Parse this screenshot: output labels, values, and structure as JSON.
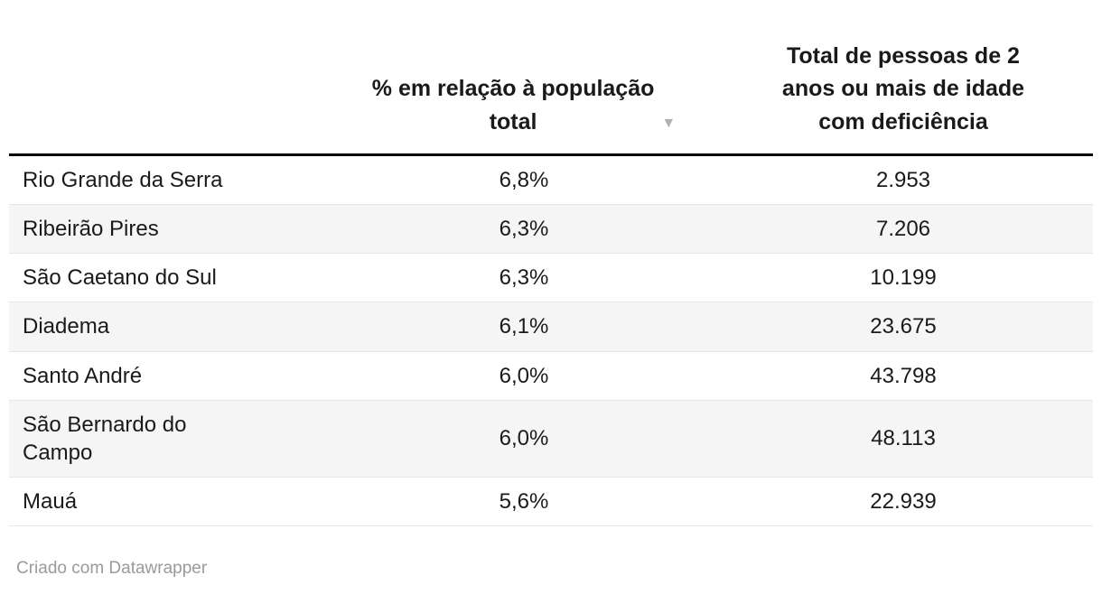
{
  "colors": {
    "text": "#1a1a1a",
    "alt_row_background": "#f5f5f5",
    "row_separator": "#e6e6e6",
    "header_rule": "#000000",
    "sort_icon": "#b0b0b0",
    "footer_text": "#9a9a9a"
  },
  "header": {
    "city_label": "",
    "pct_label_lines": [
      "% em relação à população",
      "total"
    ],
    "total_label_lines": [
      "Total de pessoas de 2",
      "anos ou mais de idade",
      "com deficiência"
    ],
    "sort_icon": "▼"
  },
  "footer": {
    "credit": "Criado com Datawrapper"
  },
  "chart_data": {
    "type": "table",
    "columns": [
      "",
      "% em relação à população total",
      "Total de pessoas de 2 anos ou mais de idade com deficiência"
    ],
    "sorted_by": {
      "column": "% em relação à população total",
      "direction": "descending"
    },
    "rows": [
      {
        "city": "Rio Grande da Serra",
        "pct": "6,8%",
        "total": "2.953"
      },
      {
        "city": "Ribeirão Pires",
        "pct": "6,3%",
        "total": "7.206"
      },
      {
        "city": "São Caetano do Sul",
        "pct": "6,3%",
        "total": "10.199"
      },
      {
        "city": "Diadema",
        "pct": "6,1%",
        "total": "23.675"
      },
      {
        "city": "Santo André",
        "pct": "6,0%",
        "total": "43.798"
      },
      {
        "city": "São Bernardo do Campo",
        "pct": "6,0%",
        "total": "48.113"
      },
      {
        "city": "Mauá",
        "pct": "5,6%",
        "total": "22.939"
      }
    ],
    "pct_values": [
      6.8,
      6.3,
      6.3,
      6.1,
      6.0,
      6.0,
      5.6
    ],
    "total_values": [
      2953,
      7206,
      10199,
      23675,
      43798,
      48113,
      22939
    ]
  }
}
